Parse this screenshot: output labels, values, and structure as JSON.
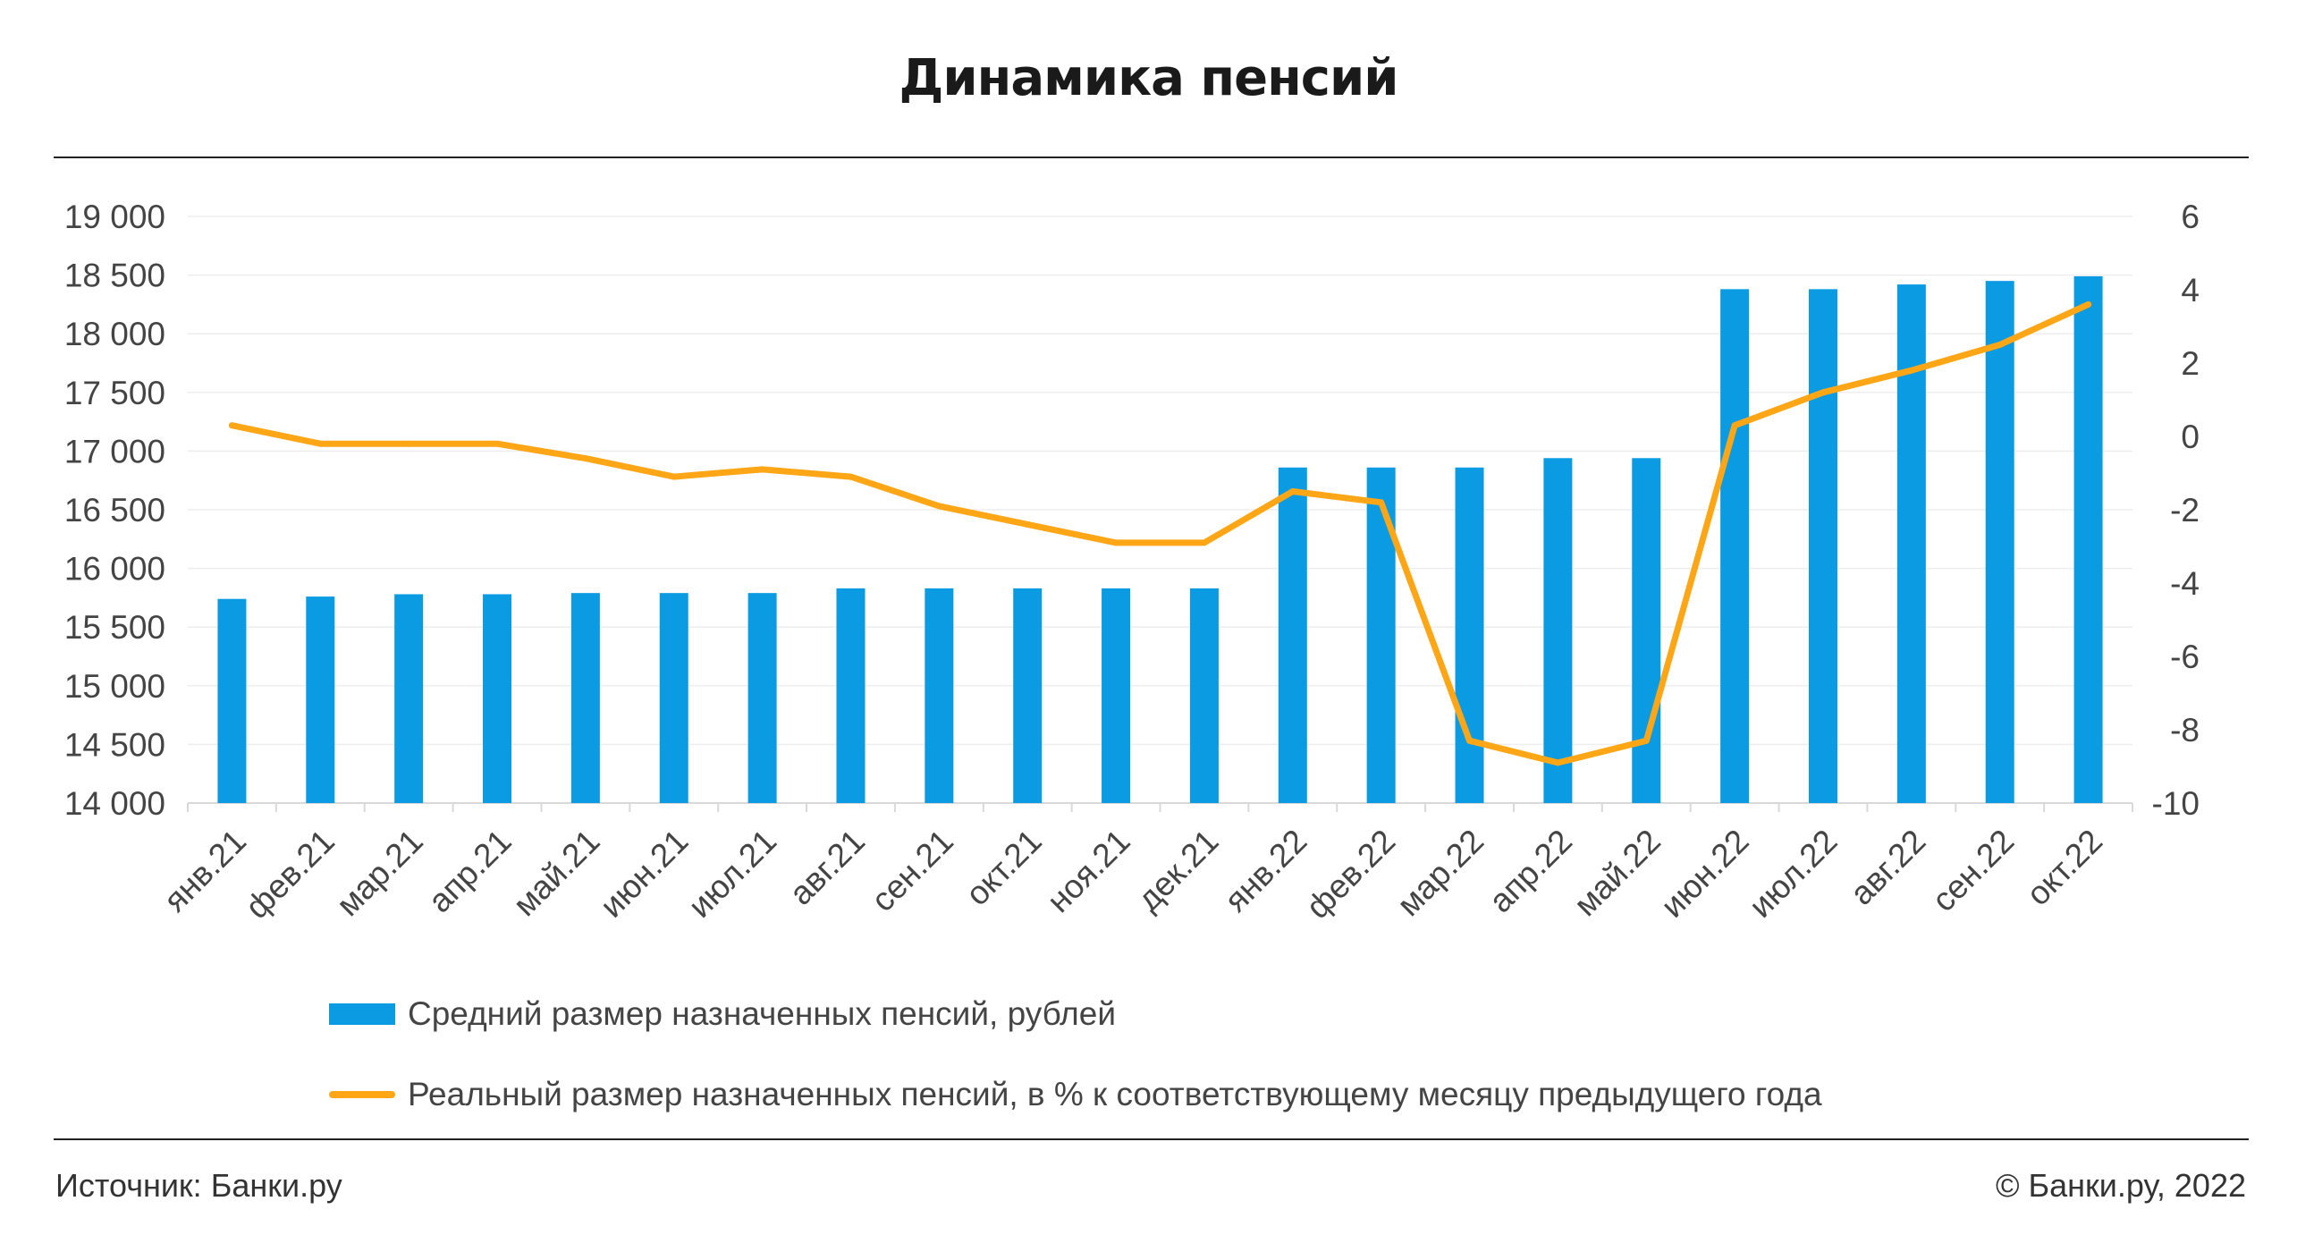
{
  "title": "Динамика пенсий",
  "legend": {
    "bars": "Средний размер назначенных пенсий, рублей",
    "line": "Реальный размер назначенных пенсий, в % к соответствующему месяцу предыдущего года"
  },
  "footer": {
    "source": "Источник: Банки.ру",
    "copyright": "© Банки.ру, 2022"
  },
  "colors": {
    "bar": "#0b9be3",
    "line": "#ffa617",
    "grid": "#eeeeee",
    "text": "#444444"
  },
  "chart_data": {
    "type": "bar",
    "title": "Динамика пенсий",
    "categories": [
      "янв.21",
      "фев.21",
      "мар.21",
      "апр.21",
      "май.21",
      "июн.21",
      "июл.21",
      "авг.21",
      "сен.21",
      "окт.21",
      "ноя.21",
      "дек.21",
      "янв.22",
      "фев.22",
      "мар.22",
      "апр.22",
      "май.22",
      "июн.22",
      "июл.22",
      "авг.22",
      "сен.22",
      "окт.22"
    ],
    "y_left": {
      "lim": [
        14000,
        19000
      ],
      "ticks": [
        14000,
        14500,
        15000,
        15500,
        16000,
        16500,
        17000,
        17500,
        18000,
        18500,
        19000
      ],
      "tick_labels": [
        "14 000",
        "14 500",
        "15 000",
        "15 500",
        "16 000",
        "16 500",
        "17 000",
        "17 500",
        "18 000",
        "18 500",
        "19 000"
      ]
    },
    "y_right": {
      "lim": [
        -10,
        6
      ],
      "ticks": [
        -10,
        -8,
        -6,
        -4,
        -2,
        0,
        2,
        4,
        6
      ],
      "tick_labels": [
        "-10",
        "-8",
        "-6",
        "-4",
        "-2",
        "0",
        "2",
        "4",
        "6"
      ]
    },
    "grid": true,
    "legend_position": "bottom",
    "series": [
      {
        "name": "Средний размер назначенных пенсий, рублей",
        "kind": "bar",
        "axis": "left",
        "values": [
          15740,
          15760,
          15780,
          15780,
          15790,
          15790,
          15790,
          15830,
          15830,
          15830,
          15830,
          15830,
          16860,
          16860,
          16860,
          16940,
          16940,
          18380,
          18380,
          18420,
          18450,
          18490
        ]
      },
      {
        "name": "Реальный размер назначенных пенсий, в % к соответствующему месяцу предыдущего года",
        "kind": "line",
        "axis": "right",
        "values": [
          0.3,
          -0.2,
          -0.2,
          -0.2,
          -0.6,
          -1.1,
          -0.9,
          -1.1,
          -1.9,
          -2.4,
          -2.9,
          -2.9,
          -1.5,
          -1.8,
          -8.3,
          -8.9,
          -8.3,
          0.3,
          1.2,
          1.8,
          2.5,
          3.6
        ]
      }
    ]
  }
}
